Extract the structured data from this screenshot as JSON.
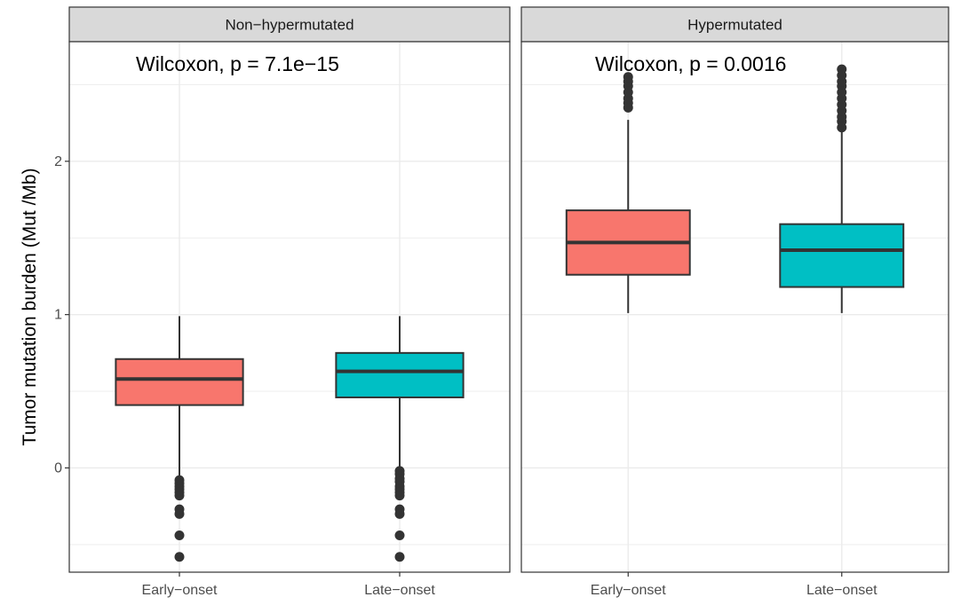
{
  "chart_data": {
    "type": "boxplot",
    "ylabel": "Tumor mutation burden (Mut /Mb)",
    "xlabel": "",
    "ylim": [
      -0.68,
      2.78
    ],
    "yticks": [
      0,
      1,
      2
    ],
    "grid": true,
    "categories": [
      "Early−onset",
      "Late−onset"
    ],
    "colors": {
      "Early−onset": "#F8766D",
      "Late−onset": "#00BFC4"
    },
    "panels": [
      {
        "title": "Non−hypermutated",
        "annotation": "Wilcoxon, p = 7.1e−15",
        "boxes": [
          {
            "category": "Early−onset",
            "q1": 0.41,
            "median": 0.58,
            "q3": 0.71,
            "whisker_low": -0.07,
            "whisker_high": 0.99,
            "outliers": [
              -0.08,
              -0.1,
              -0.12,
              -0.14,
              -0.16,
              -0.18,
              -0.27,
              -0.3,
              -0.44,
              -0.58
            ]
          },
          {
            "category": "Late−onset",
            "q1": 0.46,
            "median": 0.63,
            "q3": 0.75,
            "whisker_low": -0.01,
            "whisker_high": 0.99,
            "outliers": [
              -0.02,
              -0.04,
              -0.07,
              -0.09,
              -0.12,
              -0.14,
              -0.16,
              -0.18,
              -0.27,
              -0.3,
              -0.44,
              -0.58
            ]
          }
        ]
      },
      {
        "title": "Hypermutated",
        "annotation": "Wilcoxon, p = 0.0016",
        "boxes": [
          {
            "category": "Early−onset",
            "q1": 1.26,
            "median": 1.47,
            "q3": 1.68,
            "whisker_low": 1.01,
            "whisker_high": 2.27,
            "outliers": [
              2.35,
              2.38,
              2.41,
              2.45,
              2.49,
              2.52,
              2.55
            ]
          },
          {
            "category": "Late−onset",
            "q1": 1.18,
            "median": 1.42,
            "q3": 1.59,
            "whisker_low": 1.01,
            "whisker_high": 2.19,
            "outliers": [
              2.22,
              2.26,
              2.29,
              2.33,
              2.37,
              2.41,
              2.45,
              2.49,
              2.52,
              2.56,
              2.6
            ]
          }
        ]
      }
    ]
  }
}
